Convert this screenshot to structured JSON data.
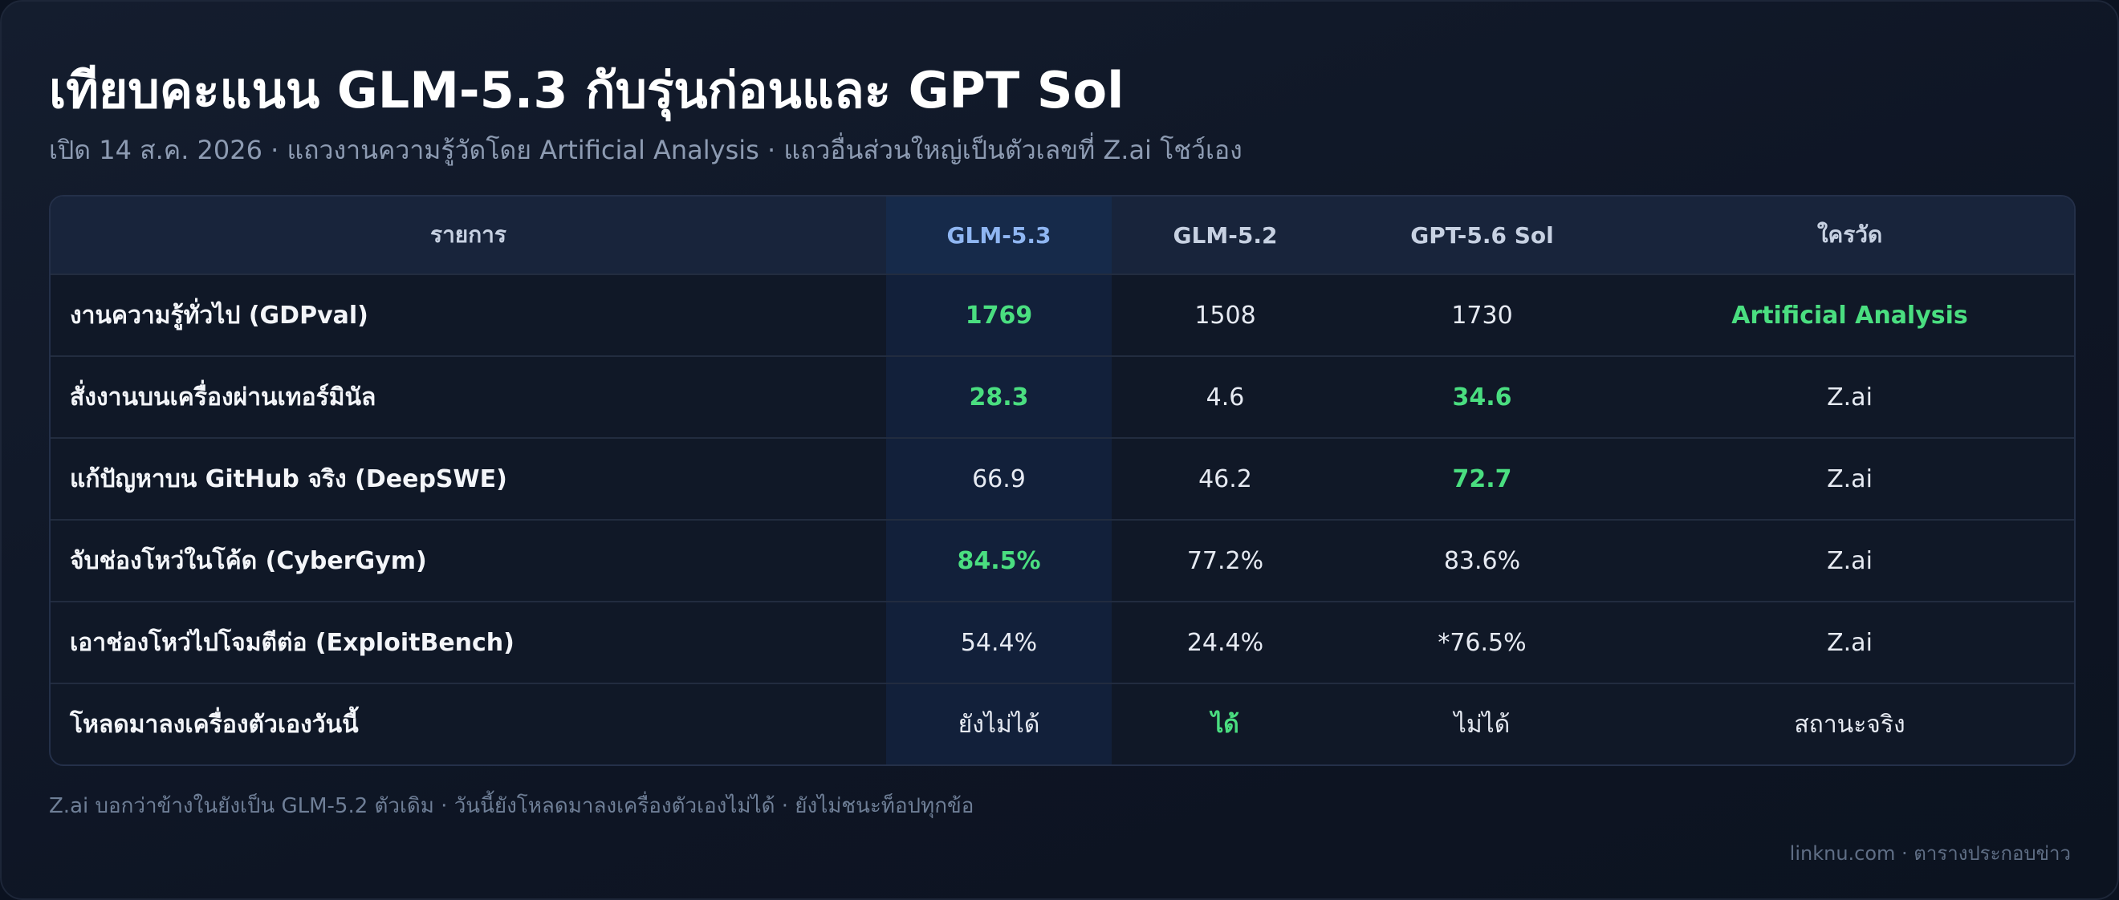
{
  "header": {
    "title": "เทียบคะแนน GLM-5.3 กับรุ่นก่อนและ GPT Sol",
    "subtitle": "เปิด 14 ส.ค. 2026 · แถวงานความรู้วัดโดย Artificial Analysis · แถวอื่นส่วนใหญ่เป็นตัวเลขที่ Z.ai โชว์เอง"
  },
  "table": {
    "columns": [
      "รายการ",
      "GLM-5.3",
      "GLM-5.2",
      "GPT-5.6 Sol",
      "ใครวัด"
    ],
    "rows": [
      {
        "cells": [
          "งานความรู้ทั่วไป (GDPval)",
          "1769",
          "1508",
          "1730",
          "Artificial Analysis"
        ],
        "highlight": [
          false,
          true,
          false,
          false,
          true
        ]
      },
      {
        "cells": [
          "สั่งงานบนเครื่องผ่านเทอร์มินัล",
          "28.3",
          "4.6",
          "34.6",
          "Z.ai"
        ],
        "highlight": [
          false,
          true,
          false,
          true,
          false
        ]
      },
      {
        "cells": [
          "แก้ปัญหาบน GitHub จริง (DeepSWE)",
          "66.9",
          "46.2",
          "72.7",
          "Z.ai"
        ],
        "highlight": [
          false,
          false,
          false,
          true,
          false
        ]
      },
      {
        "cells": [
          "จับช่องโหว่ในโค้ด (CyberGym)",
          "84.5%",
          "77.2%",
          "83.6%",
          "Z.ai"
        ],
        "highlight": [
          false,
          true,
          false,
          false,
          false
        ]
      },
      {
        "cells": [
          "เอาช่องโหว่ไปโจมตีต่อ (ExploitBench)",
          "54.4%",
          "24.4%",
          "*76.5%",
          "Z.ai"
        ],
        "highlight": [
          false,
          false,
          false,
          false,
          false
        ]
      },
      {
        "cells": [
          "โหลดมาลงเครื่องตัวเองวันนี้",
          "ยังไม่ได้",
          "ได้",
          "ไม่ได้",
          "สถานะจริง"
        ],
        "highlight": [
          false,
          false,
          true,
          false,
          false
        ]
      }
    ]
  },
  "footer": {
    "note": "Z.ai บอกว่าข้างในยังเป็น GLM-5.2 ตัวเดิม · วันนี้ยังโหลดมาลงเครื่องตัวเองไม่ได้ · ยังไม่ชนะท็อปทุกข้อ",
    "credit": "linknu.com · ตารางประกอบข่าว"
  }
}
